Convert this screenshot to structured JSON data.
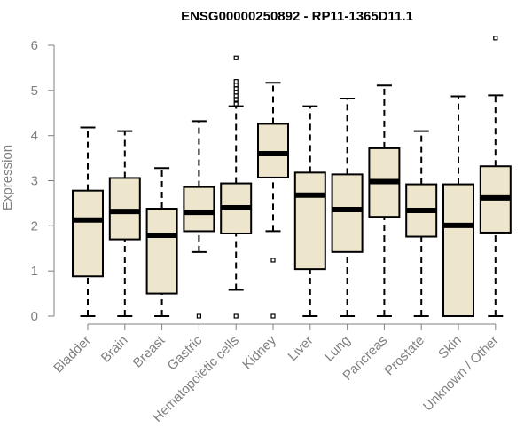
{
  "chart_data": {
    "type": "boxplot",
    "title": "ENSG00000250892 - RP11-1365D11.1",
    "xlabel": "",
    "ylabel": "Expression",
    "ylim": [
      0,
      6.2
    ],
    "yticks": [
      0,
      1,
      2,
      3,
      4,
      5,
      6
    ],
    "grid": false,
    "colors": {
      "box_fill": "#ede6cc",
      "box_stroke": "#000000",
      "axis": "#808080"
    },
    "categories": [
      "Bladder",
      "Brain",
      "Breast",
      "Gastric",
      "Hematopoietic cells",
      "Kidney",
      "Liver",
      "Lung",
      "Pancreas",
      "Prostate",
      "Skin",
      "Unknown / Other"
    ],
    "boxes": [
      {
        "whisker_low": 0.0,
        "q1": 0.88,
        "median": 2.13,
        "q3": 2.78,
        "whisker_high": 4.18,
        "outliers": []
      },
      {
        "whisker_low": 0.0,
        "q1": 1.7,
        "median": 2.32,
        "q3": 3.06,
        "whisker_high": 4.1,
        "outliers": []
      },
      {
        "whisker_low": 0.0,
        "q1": 0.5,
        "median": 1.79,
        "q3": 2.38,
        "whisker_high": 3.28,
        "outliers": []
      },
      {
        "whisker_low": 1.42,
        "q1": 1.88,
        "median": 2.3,
        "q3": 2.86,
        "whisker_high": 4.32,
        "outliers": [
          0.0
        ]
      },
      {
        "whisker_low": 0.58,
        "q1": 1.83,
        "median": 2.4,
        "q3": 2.94,
        "whisker_high": 4.65,
        "outliers": [
          0.0,
          4.7,
          4.8,
          4.88,
          4.96,
          5.04,
          5.12,
          5.2,
          5.72
        ]
      },
      {
        "whisker_low": 1.88,
        "q1": 3.07,
        "median": 3.6,
        "q3": 4.26,
        "whisker_high": 5.17,
        "outliers": [
          0.0,
          1.24
        ]
      },
      {
        "whisker_low": 0.0,
        "q1": 1.04,
        "median": 2.68,
        "q3": 3.18,
        "whisker_high": 4.65,
        "outliers": []
      },
      {
        "whisker_low": 0.0,
        "q1": 1.42,
        "median": 2.36,
        "q3": 3.14,
        "whisker_high": 4.82,
        "outliers": []
      },
      {
        "whisker_low": 0.0,
        "q1": 2.2,
        "median": 2.98,
        "q3": 3.72,
        "whisker_high": 5.11,
        "outliers": []
      },
      {
        "whisker_low": 0.0,
        "q1": 1.76,
        "median": 2.34,
        "q3": 2.92,
        "whisker_high": 4.1,
        "outliers": []
      },
      {
        "whisker_low": 0.0,
        "q1": 0.0,
        "median": 2.01,
        "q3": 2.92,
        "whisker_high": 4.87,
        "outliers": []
      },
      {
        "whisker_low": 0.0,
        "q1": 1.85,
        "median": 2.62,
        "q3": 3.32,
        "whisker_high": 4.89,
        "outliers": [
          6.16
        ]
      }
    ]
  }
}
